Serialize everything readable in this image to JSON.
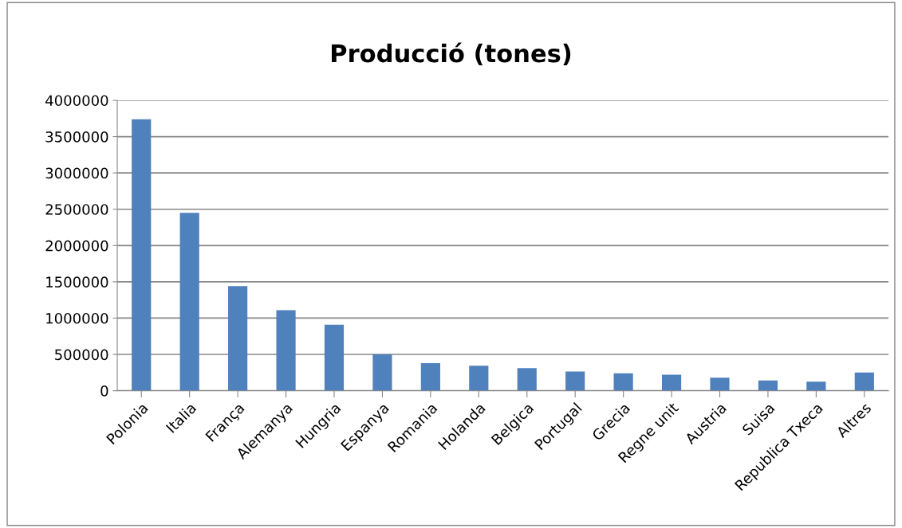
{
  "chart_data": {
    "type": "bar",
    "title": "Producció (tones)",
    "categories": [
      "Polonia",
      "Italia",
      "França",
      "Alemanya",
      "Hungria",
      "Espanya",
      "Romania",
      "Holanda",
      "Belgica",
      "Portugal",
      "Grecia",
      "Regne unit",
      "Austria",
      "Suisa",
      "Republica Txeca",
      "Altres"
    ],
    "values": [
      3740000,
      2450000,
      1440000,
      1110000,
      910000,
      500000,
      380000,
      345000,
      310000,
      265000,
      240000,
      220000,
      180000,
      140000,
      125000,
      250000
    ],
    "color": "#4f81bd",
    "ylim": [
      0,
      4000000
    ],
    "yticks": [
      0,
      500000,
      1000000,
      1500000,
      2000000,
      2500000,
      3000000,
      3500000,
      4000000
    ],
    "grid": "y"
  }
}
